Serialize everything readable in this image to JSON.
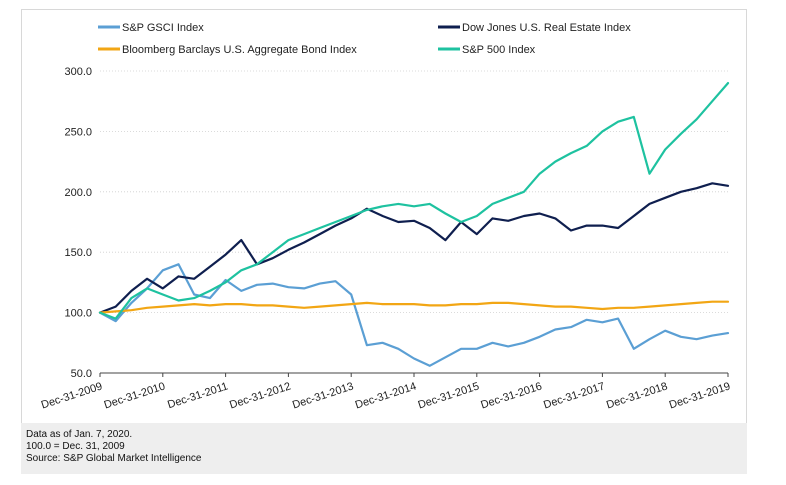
{
  "chart_data": {
    "type": "line",
    "title": "",
    "xlabel": "",
    "ylabel": "",
    "ylim": [
      50,
      300
    ],
    "y_ticks": [
      "300.0",
      "250.0",
      "200.0",
      "150.0",
      "100.0",
      "50.0"
    ],
    "y_tick_values": [
      300,
      250,
      200,
      150,
      100,
      50
    ],
    "x_ticks": [
      "Dec-31-2009",
      "Dec-31-2010",
      "Dec-31-2011",
      "Dec-31-2012",
      "Dec-31-2013",
      "Dec-31-2014",
      "Dec-31-2015",
      "Dec-31-2016",
      "Dec-31-2017",
      "Dec-31-2018",
      "Dec-31-2019"
    ],
    "x": [
      2010.0,
      2010.25,
      2010.5,
      2010.75,
      2011.0,
      2011.25,
      2011.5,
      2011.75,
      2012.0,
      2012.25,
      2012.5,
      2012.75,
      2013.0,
      2013.25,
      2013.5,
      2013.75,
      2014.0,
      2014.25,
      2014.5,
      2014.75,
      2015.0,
      2015.25,
      2015.5,
      2015.75,
      2016.0,
      2016.25,
      2016.5,
      2016.75,
      2017.0,
      2017.25,
      2017.5,
      2017.75,
      2018.0,
      2018.25,
      2018.5,
      2018.75,
      2019.0,
      2019.25,
      2019.5,
      2019.75,
      2020.0
    ],
    "grid": true,
    "legend_placement": "top",
    "series": [
      {
        "name": "S&P GSCI Index",
        "color": "#5b9fd4",
        "values": [
          100,
          93,
          108,
          120,
          135,
          140,
          115,
          112,
          127,
          118,
          123,
          124,
          121,
          120,
          124,
          126,
          115,
          73,
          75,
          70,
          62,
          56,
          63,
          70,
          70,
          75,
          72,
          75,
          80,
          86,
          88,
          94,
          92,
          95,
          70,
          78,
          85,
          80,
          78,
          81,
          83
        ]
      },
      {
        "name": "Dow Jones U.S. Real Estate Index",
        "color": "#0f1f4f",
        "values": [
          100,
          105,
          118,
          128,
          120,
          130,
          128,
          138,
          148,
          160,
          140,
          145,
          152,
          158,
          165,
          172,
          178,
          186,
          180,
          175,
          176,
          170,
          160,
          175,
          165,
          178,
          176,
          180,
          182,
          178,
          168,
          172,
          172,
          170,
          180,
          190,
          195,
          200,
          203,
          207,
          205
        ]
      },
      {
        "name": "Bloomberg Barclays U.S. Aggregate Bond Index",
        "color": "#f2a614",
        "values": [
          100,
          101,
          102,
          104,
          105,
          106,
          107,
          106,
          107,
          107,
          106,
          106,
          105,
          104,
          105,
          106,
          107,
          108,
          107,
          107,
          107,
          106,
          106,
          107,
          107,
          108,
          108,
          107,
          106,
          105,
          105,
          104,
          103,
          104,
          104,
          105,
          106,
          107,
          108,
          109,
          109
        ]
      },
      {
        "name": "S&P 500 Index",
        "color": "#1ec2a0",
        "values": [
          100,
          95,
          112,
          120,
          115,
          110,
          112,
          118,
          125,
          135,
          140,
          150,
          160,
          165,
          170,
          175,
          180,
          185,
          188,
          190,
          188,
          190,
          182,
          175,
          180,
          190,
          195,
          200,
          215,
          225,
          232,
          238,
          250,
          258,
          262,
          215,
          235,
          248,
          260,
          275,
          290
        ]
      }
    ]
  },
  "footer": {
    "line1": "Data as of Jan. 7, 2020.",
    "line2": "100.0 = Dec. 31, 2009",
    "line3": "Source: S&P Global Market Intelligence"
  }
}
